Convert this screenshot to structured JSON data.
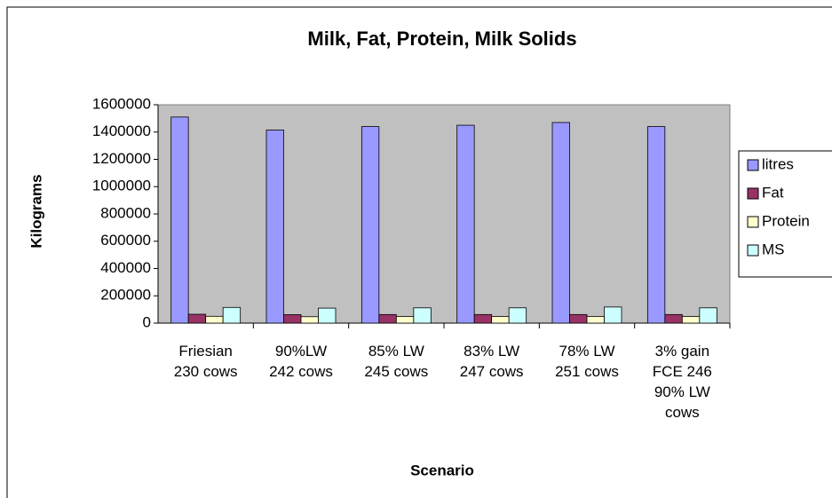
{
  "chart_data": {
    "type": "bar",
    "title": "Milk, Fat, Protein, Milk Solids",
    "x_label": "Scenario",
    "y_label": "Kilograms",
    "categories": [
      "Friesian 230 cows",
      "90%LW 242 cows",
      "85% LW 245 cows",
      "83% LW 247 cows",
      "78% LW 251 cows",
      "3% gain FCE 246 90% LW cows"
    ],
    "series": [
      {
        "name": "litres",
        "color": "#9999ff",
        "values": [
          1510000,
          1415000,
          1440000,
          1450000,
          1470000,
          1440000
        ]
      },
      {
        "name": "Fat",
        "color": "#993366",
        "values": [
          65000,
          62000,
          63000,
          63000,
          63000,
          63000
        ]
      },
      {
        "name": "Protein",
        "color": "#ffffcc",
        "values": [
          50000,
          47000,
          48000,
          48000,
          49000,
          48000
        ]
      },
      {
        "name": "MS",
        "color": "#ccffff",
        "values": [
          115000,
          110000,
          112000,
          112000,
          118000,
          112000
        ]
      }
    ],
    "ylim": [
      0,
      1600000
    ],
    "yticks": [
      0,
      200000,
      400000,
      600000,
      800000,
      1000000,
      1200000,
      1400000,
      1600000
    ],
    "plot_background": "#c0c0c0",
    "legend": "right"
  }
}
